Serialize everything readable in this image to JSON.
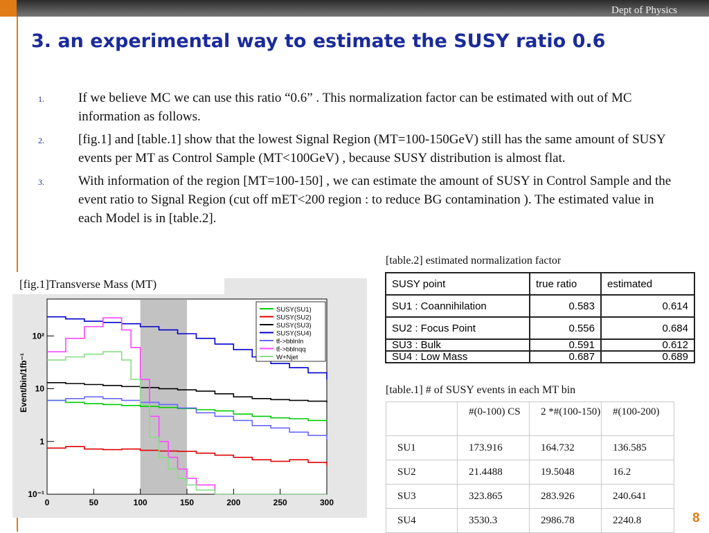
{
  "header": {
    "dept": "Dept of Physics"
  },
  "title": "3. an experimental way to estimate the SUSY ratio 0.6",
  "list": [
    {
      "num": "1.",
      "text": "If we believe MC we can use this ratio “0.6” . This normalization factor can be estimated with out of MC information as follows."
    },
    {
      "num": "2.",
      "text": "[fig.1]  and [table.1] show that the lowest Signal Region (MT=100-150GeV) still has the same amount of SUSY events per MT as Control Sample (MT<100GeV) , because SUSY distribution is almost flat."
    },
    {
      "num": "3.",
      "text": "With information of the region  [MT=100-150] ,  we can estimate  the amount of SUSY in Control Sample and the event ratio to Signal Region (cut off mET<200 region : to reduce BG contamination ). The estimated value in each Model is in [table.2]."
    }
  ],
  "table2": {
    "caption": "[table.2] estimated normalization factor",
    "headers": [
      "SUSY point",
      "true ratio",
      "estimated"
    ],
    "rows": [
      [
        "SU1 : Coannihilation",
        "0.583",
        "0.614"
      ],
      [
        "SU2 : Focus Point",
        "0.556",
        "0.684"
      ],
      [
        "SU3 : Bulk",
        "0.591",
        "0.612"
      ],
      [
        "SU4 : Low Mass",
        "0.687",
        "0.689"
      ]
    ]
  },
  "table1": {
    "caption": "[table.1] # of SUSY events in each MT bin",
    "headers": [
      "",
      "#(0-100) CS",
      "2 *#(100-150)",
      "#(100-200)"
    ],
    "rows": [
      [
        "SU1",
        "173.916",
        "164.732",
        "136.585"
      ],
      [
        "SU2",
        "21.4488",
        "19.5048",
        "16.2"
      ],
      [
        "SU3",
        "323.865",
        "283.926",
        "240.641"
      ],
      [
        "SU4",
        "3530.3",
        "2986.78",
        "2240.8"
      ]
    ]
  },
  "figure": {
    "caption": "[fig.1]Transverse Mass (MT)"
  },
  "page_number": "8",
  "chart_data": {
    "type": "line",
    "ylabel": "Event/bin/1fb⁻¹",
    "y_scale": "log",
    "xlim": [
      0,
      300
    ],
    "ylim": [
      0.1,
      500
    ],
    "x_ticks": [
      "0",
      "50",
      "100",
      "150",
      "200",
      "250",
      "300"
    ],
    "y_ticks": [
      "10⁻¹",
      "1",
      "10",
      "10²"
    ],
    "shaded_region": [
      100,
      150
    ],
    "legend_position": "top-right",
    "series": [
      {
        "name": "SUSY(SU1)",
        "color": "#00cc00",
        "x": [
          0,
          20,
          40,
          60,
          80,
          100,
          120,
          140,
          160,
          180,
          200,
          220,
          240,
          260,
          280,
          300
        ],
        "values": [
          6,
          5.5,
          5.2,
          5,
          4.8,
          4.6,
          4.4,
          4.2,
          4,
          3.8,
          3.3,
          3,
          2.8,
          2.7,
          2.5,
          2.6
        ]
      },
      {
        "name": "SUSY(SU2)",
        "color": "#e00000",
        "x": [
          0,
          20,
          40,
          60,
          80,
          100,
          120,
          140,
          160,
          180,
          200,
          220,
          240,
          260,
          280,
          300
        ],
        "values": [
          0.75,
          0.8,
          0.72,
          0.7,
          0.72,
          0.68,
          0.66,
          0.65,
          0.6,
          0.55,
          0.5,
          0.45,
          0.42,
          0.45,
          0.4,
          0.35
        ]
      },
      {
        "name": "SUSY(SU3)",
        "color": "#000000",
        "x": [
          0,
          20,
          40,
          60,
          80,
          100,
          120,
          140,
          160,
          180,
          200,
          220,
          240,
          260,
          280,
          300
        ],
        "values": [
          13,
          12.5,
          12,
          11.5,
          11,
          10.5,
          10,
          9.5,
          9,
          8,
          7,
          6.5,
          6.2,
          6,
          5.8,
          5.5
        ]
      },
      {
        "name": "SUSY(SU4)",
        "color": "#0000cc",
        "x": [
          0,
          20,
          40,
          60,
          80,
          100,
          120,
          140,
          160,
          180,
          200,
          220,
          240,
          260,
          280,
          300
        ],
        "values": [
          230,
          210,
          190,
          180,
          170,
          150,
          130,
          110,
          90,
          70,
          55,
          40,
          30,
          25,
          20,
          15
        ]
      },
      {
        "name": "tt̄->bblnln",
        "color": "#6666ff",
        "x": [
          0,
          20,
          40,
          60,
          80,
          100,
          120,
          140,
          160,
          180,
          200,
          220,
          240,
          260,
          280,
          300
        ],
        "values": [
          6,
          6.5,
          7,
          6.5,
          6,
          5.5,
          5,
          4.3,
          3.5,
          3,
          2.5,
          2,
          1.8,
          1.5,
          1.3,
          1.1
        ]
      },
      {
        "name": "tt̄->bblnqq",
        "color": "#ff44ff",
        "x": [
          0,
          20,
          40,
          60,
          80,
          90,
          100,
          110,
          120,
          130,
          140,
          150,
          160,
          180,
          200,
          220,
          240,
          260,
          280,
          300
        ],
        "values": [
          50,
          90,
          150,
          220,
          130,
          60,
          15,
          3,
          1,
          0.5,
          0.3,
          0.2,
          0.15,
          0.1,
          0.1,
          0.1,
          0.1,
          0.1,
          0.1,
          0.1
        ]
      },
      {
        "name": "W+Njet",
        "color": "#88dd88",
        "x": [
          0,
          20,
          40,
          60,
          80,
          90,
          100,
          110,
          120,
          130,
          140,
          150,
          160,
          180,
          200,
          220,
          240,
          260,
          280,
          300
        ],
        "values": [
          35,
          40,
          45,
          50,
          35,
          15,
          5,
          1.2,
          0.5,
          0.3,
          0.2,
          0.15,
          0.12,
          0.1,
          0.1,
          0.1,
          0.1,
          0.1,
          0.1,
          0.1
        ]
      }
    ]
  }
}
